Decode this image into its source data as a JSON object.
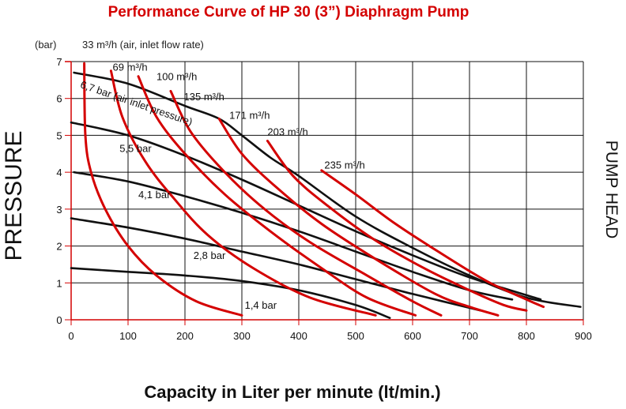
{
  "title": "Performance Curve of HP 30 (3”) Diaphragm Pump",
  "pressure_unit": "(bar)",
  "air_flow_note": "33 m³/h (air, inlet flow rate)",
  "left_axis_title": "PRESSURE",
  "right_axis_title": "PUMP HEAD",
  "x_axis_title": "Capacity in Liter per minute (lt/min.)",
  "colors": {
    "grid": "#111111",
    "axis_red": "#d40000",
    "air_curve": "#d40000",
    "pressure_curve": "#111111"
  },
  "chart_data": {
    "type": "line",
    "title": "Performance Curve of HP 30 (3”) Diaphragm Pump",
    "xlabel": "Capacity in Liter per minute (lt/min.)",
    "ylabel": "PRESSURE",
    "ylabel_right": "PUMP HEAD",
    "xlim": [
      0,
      900
    ],
    "ylim": [
      0,
      7
    ],
    "x_ticks": [
      "0",
      "100",
      "200",
      "300",
      "400",
      "500",
      "600",
      "700",
      "800",
      "900"
    ],
    "y_ticks": [
      "0",
      "1",
      "2",
      "3",
      "4",
      "5",
      "6",
      "7"
    ],
    "grid": true,
    "series": [
      {
        "name": "6,7 bar (air inlet pressure)",
        "group": "air_pressure",
        "points": [
          [
            5,
            6.7
          ],
          [
            100,
            6.4
          ],
          [
            200,
            5.8
          ],
          [
            260,
            5.45
          ],
          [
            300,
            5.0
          ],
          [
            350,
            4.4
          ],
          [
            400,
            3.9
          ],
          [
            500,
            2.8
          ],
          [
            600,
            1.95
          ],
          [
            700,
            1.2
          ],
          [
            800,
            0.6
          ],
          [
            895,
            0.35
          ]
        ]
      },
      {
        "name": "5,5 bar",
        "group": "air_pressure",
        "points": [
          [
            0,
            5.35
          ],
          [
            100,
            5.0
          ],
          [
            200,
            4.45
          ],
          [
            300,
            3.8
          ],
          [
            400,
            3.1
          ],
          [
            500,
            2.4
          ],
          [
            600,
            1.75
          ],
          [
            700,
            1.15
          ],
          [
            825,
            0.55
          ]
        ]
      },
      {
        "name": "4,1 bar",
        "group": "air_pressure",
        "points": [
          [
            5,
            4.0
          ],
          [
            100,
            3.75
          ],
          [
            200,
            3.35
          ],
          [
            300,
            2.9
          ],
          [
            400,
            2.4
          ],
          [
            500,
            1.85
          ],
          [
            600,
            1.3
          ],
          [
            700,
            0.8
          ],
          [
            775,
            0.55
          ]
        ]
      },
      {
        "name": "2,8 bar",
        "group": "air_pressure",
        "points": [
          [
            0,
            2.75
          ],
          [
            100,
            2.5
          ],
          [
            200,
            2.2
          ],
          [
            300,
            1.85
          ],
          [
            400,
            1.5
          ],
          [
            500,
            1.1
          ],
          [
            600,
            0.7
          ],
          [
            720,
            0.25
          ]
        ]
      },
      {
        "name": "1,4 bar",
        "group": "air_pressure",
        "points": [
          [
            0,
            1.4
          ],
          [
            100,
            1.3
          ],
          [
            200,
            1.2
          ],
          [
            300,
            1.05
          ],
          [
            400,
            0.8
          ],
          [
            500,
            0.4
          ],
          [
            560,
            0.05
          ]
        ]
      },
      {
        "name": "33 m³/h",
        "group": "air_flow",
        "points": [
          [
            23,
            6.95
          ],
          [
            25,
            5.0
          ],
          [
            35,
            4.0
          ],
          [
            60,
            3.0
          ],
          [
            100,
            2.0
          ],
          [
            150,
            1.2
          ],
          [
            220,
            0.5
          ],
          [
            300,
            0.12
          ]
        ]
      },
      {
        "name": "69 m³/h",
        "group": "air_flow",
        "points": [
          [
            70,
            6.75
          ],
          [
            90,
            5.5
          ],
          [
            130,
            4.3
          ],
          [
            180,
            3.3
          ],
          [
            240,
            2.3
          ],
          [
            320,
            1.4
          ],
          [
            420,
            0.6
          ],
          [
            535,
            0.12
          ]
        ]
      },
      {
        "name": "100 m³/h",
        "group": "air_flow",
        "points": [
          [
            118,
            6.6
          ],
          [
            150,
            5.5
          ],
          [
            200,
            4.5
          ],
          [
            270,
            3.4
          ],
          [
            350,
            2.4
          ],
          [
            440,
            1.4
          ],
          [
            520,
            0.6
          ],
          [
            605,
            0.12
          ]
        ]
      },
      {
        "name": "135 m³/h",
        "group": "air_flow",
        "points": [
          [
            175,
            6.2
          ],
          [
            210,
            5.1
          ],
          [
            270,
            4.0
          ],
          [
            340,
            3.0
          ],
          [
            420,
            2.1
          ],
          [
            520,
            1.2
          ],
          [
            600,
            0.5
          ],
          [
            650,
            0.12
          ]
        ]
      },
      {
        "name": "171 m³/h",
        "group": "air_flow",
        "points": [
          [
            260,
            5.45
          ],
          [
            300,
            4.5
          ],
          [
            360,
            3.6
          ],
          [
            440,
            2.6
          ],
          [
            540,
            1.6
          ],
          [
            640,
            0.7
          ],
          [
            700,
            0.35
          ],
          [
            750,
            0.12
          ]
        ]
      },
      {
        "name": "203 m³/h",
        "group": "air_flow",
        "points": [
          [
            345,
            4.85
          ],
          [
            390,
            3.9
          ],
          [
            450,
            3.1
          ],
          [
            530,
            2.2
          ],
          [
            620,
            1.4
          ],
          [
            700,
            0.8
          ],
          [
            760,
            0.4
          ],
          [
            800,
            0.25
          ]
        ]
      },
      {
        "name": "235 m³/h",
        "group": "air_flow",
        "points": [
          [
            440,
            4.05
          ],
          [
            500,
            3.4
          ],
          [
            570,
            2.6
          ],
          [
            650,
            1.8
          ],
          [
            730,
            1.05
          ],
          [
            800,
            0.55
          ],
          [
            830,
            0.35
          ]
        ]
      }
    ],
    "annotations": [
      {
        "text": "69 m³/h",
        "x": 73,
        "y": 6.75
      },
      {
        "text": "100 m³/h",
        "x": 150,
        "y": 6.5
      },
      {
        "text": "135 m³/h",
        "x": 198,
        "y": 5.95
      },
      {
        "text": "171 m³/h",
        "x": 278,
        "y": 5.45
      },
      {
        "text": "203 m³/h",
        "x": 345,
        "y": 5.0
      },
      {
        "text": "235 m³/h",
        "x": 445,
        "y": 4.1
      },
      {
        "text": "6,7 bar (air inlet pressure)",
        "x": 15,
        "y": 6.3,
        "rotate": 19
      },
      {
        "text": "5,5 bar",
        "x": 85,
        "y": 4.55
      },
      {
        "text": "4,1 bar",
        "x": 118,
        "y": 3.3
      },
      {
        "text": "2,8 bar",
        "x": 215,
        "y": 1.65
      },
      {
        "text": "1,4 bar",
        "x": 305,
        "y": 0.3
      }
    ]
  }
}
